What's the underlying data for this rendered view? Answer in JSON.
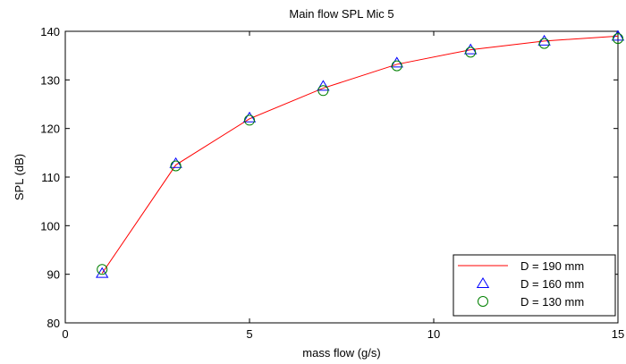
{
  "chart_data": {
    "type": "line",
    "title": "Main flow SPL Mic 5",
    "xlabel": "mass flow (g/s)",
    "ylabel": "SPL (dB)",
    "xlim": [
      0,
      15
    ],
    "ylim": [
      80,
      140
    ],
    "xticks": [
      "0",
      "5",
      "10",
      "15"
    ],
    "yticks": [
      "80",
      "90",
      "100",
      "110",
      "120",
      "130",
      "140"
    ],
    "grid": false,
    "legend_position": "bottom-right",
    "series": [
      {
        "name": "D = 190 mm",
        "style": "line",
        "color": "#ff0000",
        "x": [
          1,
          3,
          5,
          7,
          9,
          11,
          13,
          15
        ],
        "y": [
          90.2,
          112.5,
          122.0,
          128.3,
          133.2,
          136.2,
          138.0,
          139.0
        ]
      },
      {
        "name": "D = 160 mm",
        "style": "triangle",
        "color": "#0000ff",
        "x": [
          1,
          3,
          5,
          7,
          9,
          11,
          13,
          15
        ],
        "y": [
          90.2,
          112.8,
          122.2,
          128.7,
          133.5,
          136.2,
          138.0,
          139.0
        ]
      },
      {
        "name": "D = 130 mm",
        "style": "circle",
        "color": "#008000",
        "x": [
          1,
          3,
          5,
          7,
          9,
          11,
          13,
          15
        ],
        "y": [
          91.0,
          112.3,
          121.7,
          127.8,
          132.9,
          135.7,
          137.5,
          138.5
        ]
      }
    ]
  }
}
